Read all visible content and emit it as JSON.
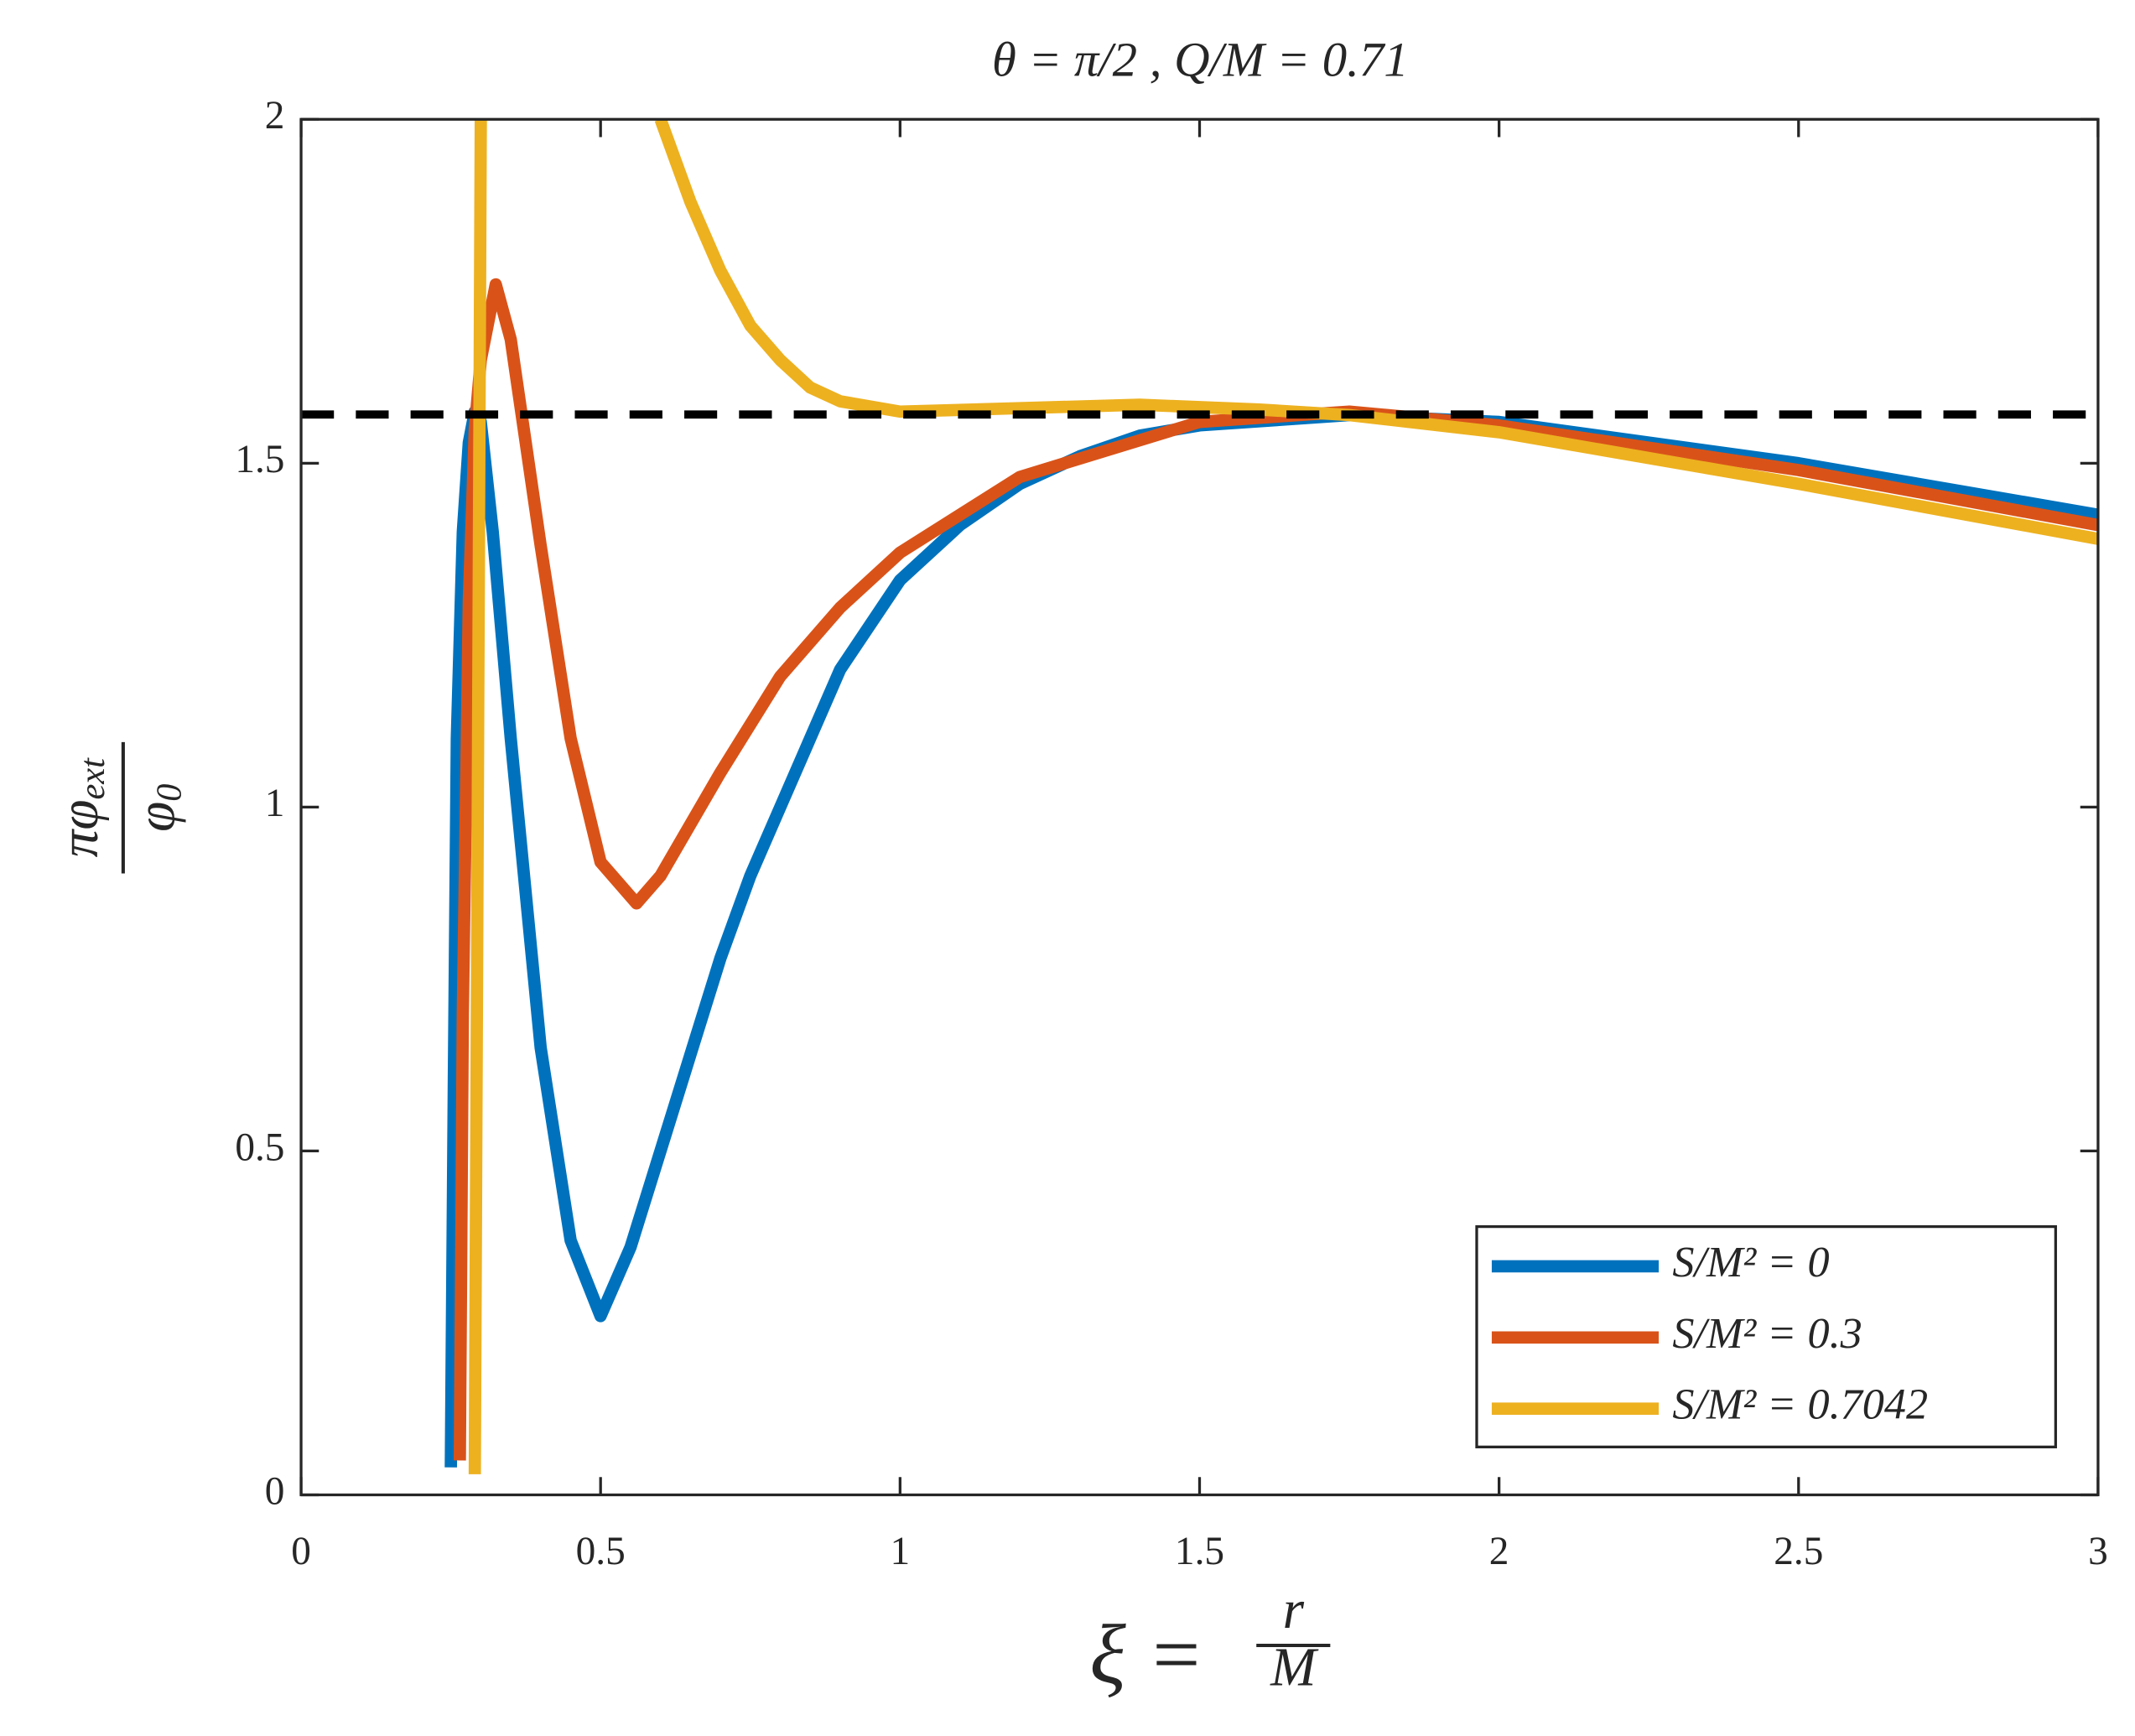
{
  "chart_data": {
    "type": "line",
    "title": "θ = π/2 ,    Q/M = 0.71",
    "xlabel": {
      "lhs": "ξ =",
      "num": "r",
      "den": "M"
    },
    "ylabel": {
      "num": "πφ",
      "num_sub": "ext",
      "den": "φ",
      "den_sub": "0"
    },
    "xlim": [
      0,
      3
    ],
    "ylim": [
      0,
      2
    ],
    "xticks": [
      0,
      0.5,
      1,
      1.5,
      2,
      2.5,
      3
    ],
    "yticks": [
      0,
      0.5,
      1,
      1.5,
      2
    ],
    "hline": {
      "value": 1.5708,
      "color": "#000000"
    },
    "legend": "lower right",
    "series": [
      {
        "name": "S/M² = 0",
        "color": "#0072bd",
        "x": [
          0.25,
          0.255,
          0.26,
          0.27,
          0.28,
          0.29,
          0.3,
          0.32,
          0.35,
          0.4,
          0.45,
          0.5,
          0.55,
          0.6,
          0.65,
          0.7,
          0.75,
          0.8,
          0.85,
          0.9,
          1.0,
          1.1,
          1.2,
          1.3,
          1.4,
          1.5,
          1.75,
          2.0,
          2.5,
          3.0
        ],
        "values": [
          0.04,
          0.6,
          1.1,
          1.4,
          1.53,
          1.575,
          1.56,
          1.4,
          1.1,
          0.65,
          0.37,
          0.26,
          0.36,
          0.5,
          0.64,
          0.78,
          0.9,
          1.0,
          1.1,
          1.2,
          1.33,
          1.41,
          1.47,
          1.51,
          1.54,
          1.555,
          1.57,
          1.56,
          1.5,
          1.425
        ]
      },
      {
        "name": "S/M² = 0.3",
        "color": "#d95319",
        "x": [
          0.265,
          0.27,
          0.28,
          0.29,
          0.3,
          0.325,
          0.35,
          0.4,
          0.45,
          0.5,
          0.56,
          0.6,
          0.7,
          0.8,
          0.9,
          1.0,
          1.2,
          1.5,
          1.75,
          2.0,
          2.5,
          3.0
        ],
        "values": [
          0.05,
          0.7,
          1.3,
          1.55,
          1.65,
          1.76,
          1.68,
          1.38,
          1.1,
          0.92,
          0.86,
          0.9,
          1.05,
          1.19,
          1.29,
          1.37,
          1.48,
          1.56,
          1.575,
          1.555,
          1.49,
          1.41
        ]
      },
      {
        "name": "S/M² = 0.7042",
        "color": "#edb120",
        "x": [
          0.29,
          0.295,
          0.3,
          0.45,
          0.6,
          0.65,
          0.7,
          0.75,
          0.8,
          0.85,
          0.9,
          1.0,
          1.2,
          1.4,
          1.6,
          1.75,
          2.0,
          2.5,
          3.0
        ],
        "values": [
          0.03,
          1.0,
          2.0,
          null,
          2.0,
          1.88,
          1.78,
          1.7,
          1.65,
          1.61,
          1.59,
          1.575,
          1.58,
          1.585,
          1.578,
          1.57,
          1.545,
          1.47,
          1.39
        ]
      }
    ]
  }
}
